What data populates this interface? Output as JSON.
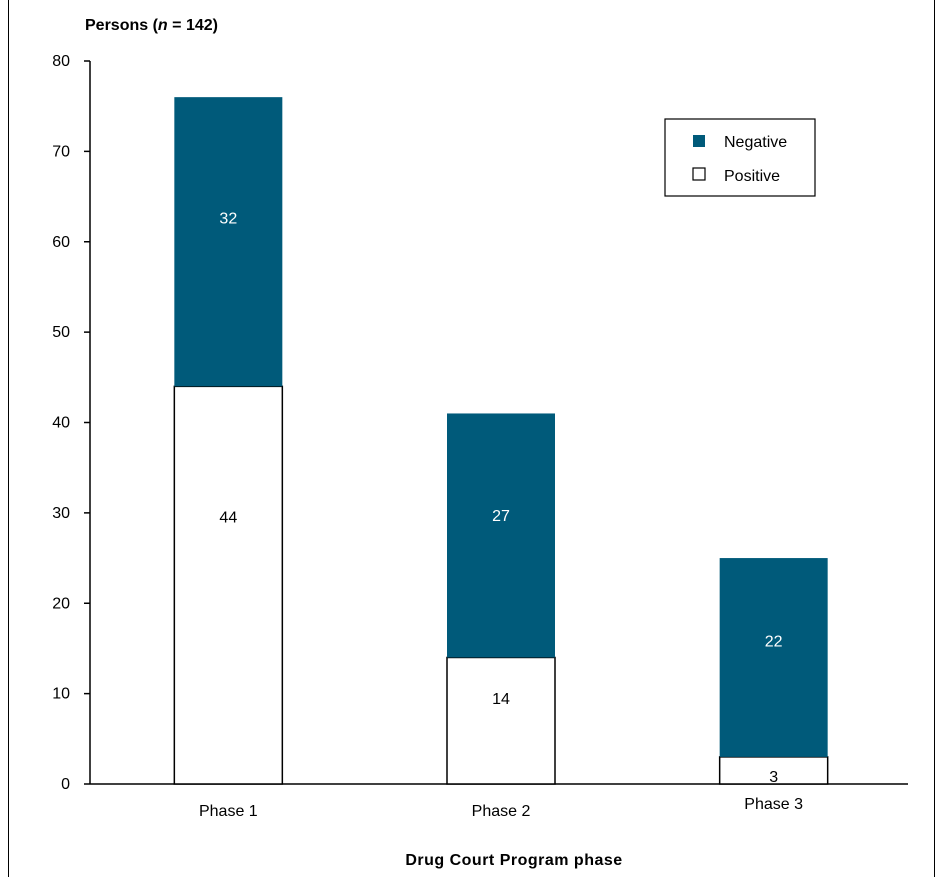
{
  "chart_data": {
    "type": "bar",
    "stacked": true,
    "y_title_prefix": "Persons (",
    "y_title_n": "n",
    "y_title_suffix": " = 142)",
    "xlabel": "Drug Court Program phase",
    "categories": [
      "Phase 1",
      "Phase 2",
      "Phase 3"
    ],
    "series": [
      {
        "name": "Positive",
        "values": [
          44,
          14,
          3
        ],
        "color": "#ffffff"
      },
      {
        "name": "Negative",
        "values": [
          32,
          27,
          22
        ],
        "color": "#005a7a"
      }
    ],
    "ylim": [
      0,
      80
    ],
    "yticks": [
      "0",
      "10",
      "20",
      "30",
      "40",
      "50",
      "60",
      "70",
      "80"
    ],
    "legend_position": "top-right",
    "grid": false
  }
}
